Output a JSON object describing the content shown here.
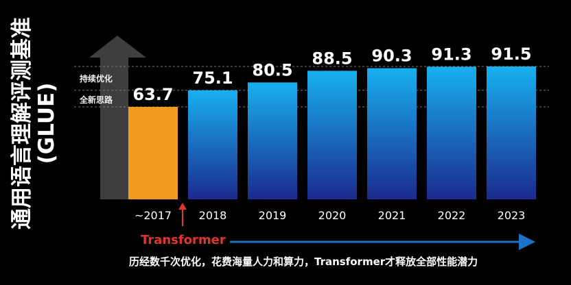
{
  "chart_data": {
    "type": "bar",
    "ylabel": "通用语言理解评测基准",
    "ylabel_sub": "(GLUE)",
    "categories": [
      "~2017",
      "2018",
      "2019",
      "2020",
      "2021",
      "2022",
      "2023"
    ],
    "values": [
      63.7,
      75.1,
      80.5,
      88.5,
      90.3,
      91.3,
      91.5
    ],
    "value_labels": [
      "63.7",
      "75.1",
      "80.5",
      "88.5",
      "90.3",
      "91.3",
      "91.5"
    ],
    "ylim": [
      0,
      120
    ],
    "grid": false,
    "reference_lines": [
      63.7,
      75.1,
      91.5
    ],
    "colors": {
      "first_bar": "#f29a1f",
      "bars_top": "#18b0f0",
      "bars_bottom": "#1b2a8e",
      "background": "#000000",
      "arrow_gray": "#3f3d3d",
      "accent_red": "#e0352b",
      "timeline_blue": "#1a73c8"
    },
    "annotations": {
      "band_upper": "持续优化",
      "band_lower": "全新思路",
      "marker": "Transformer",
      "caption": "历经数千次优化，花费海量人力和算力，Transformer才释放全部性能潜力"
    }
  }
}
